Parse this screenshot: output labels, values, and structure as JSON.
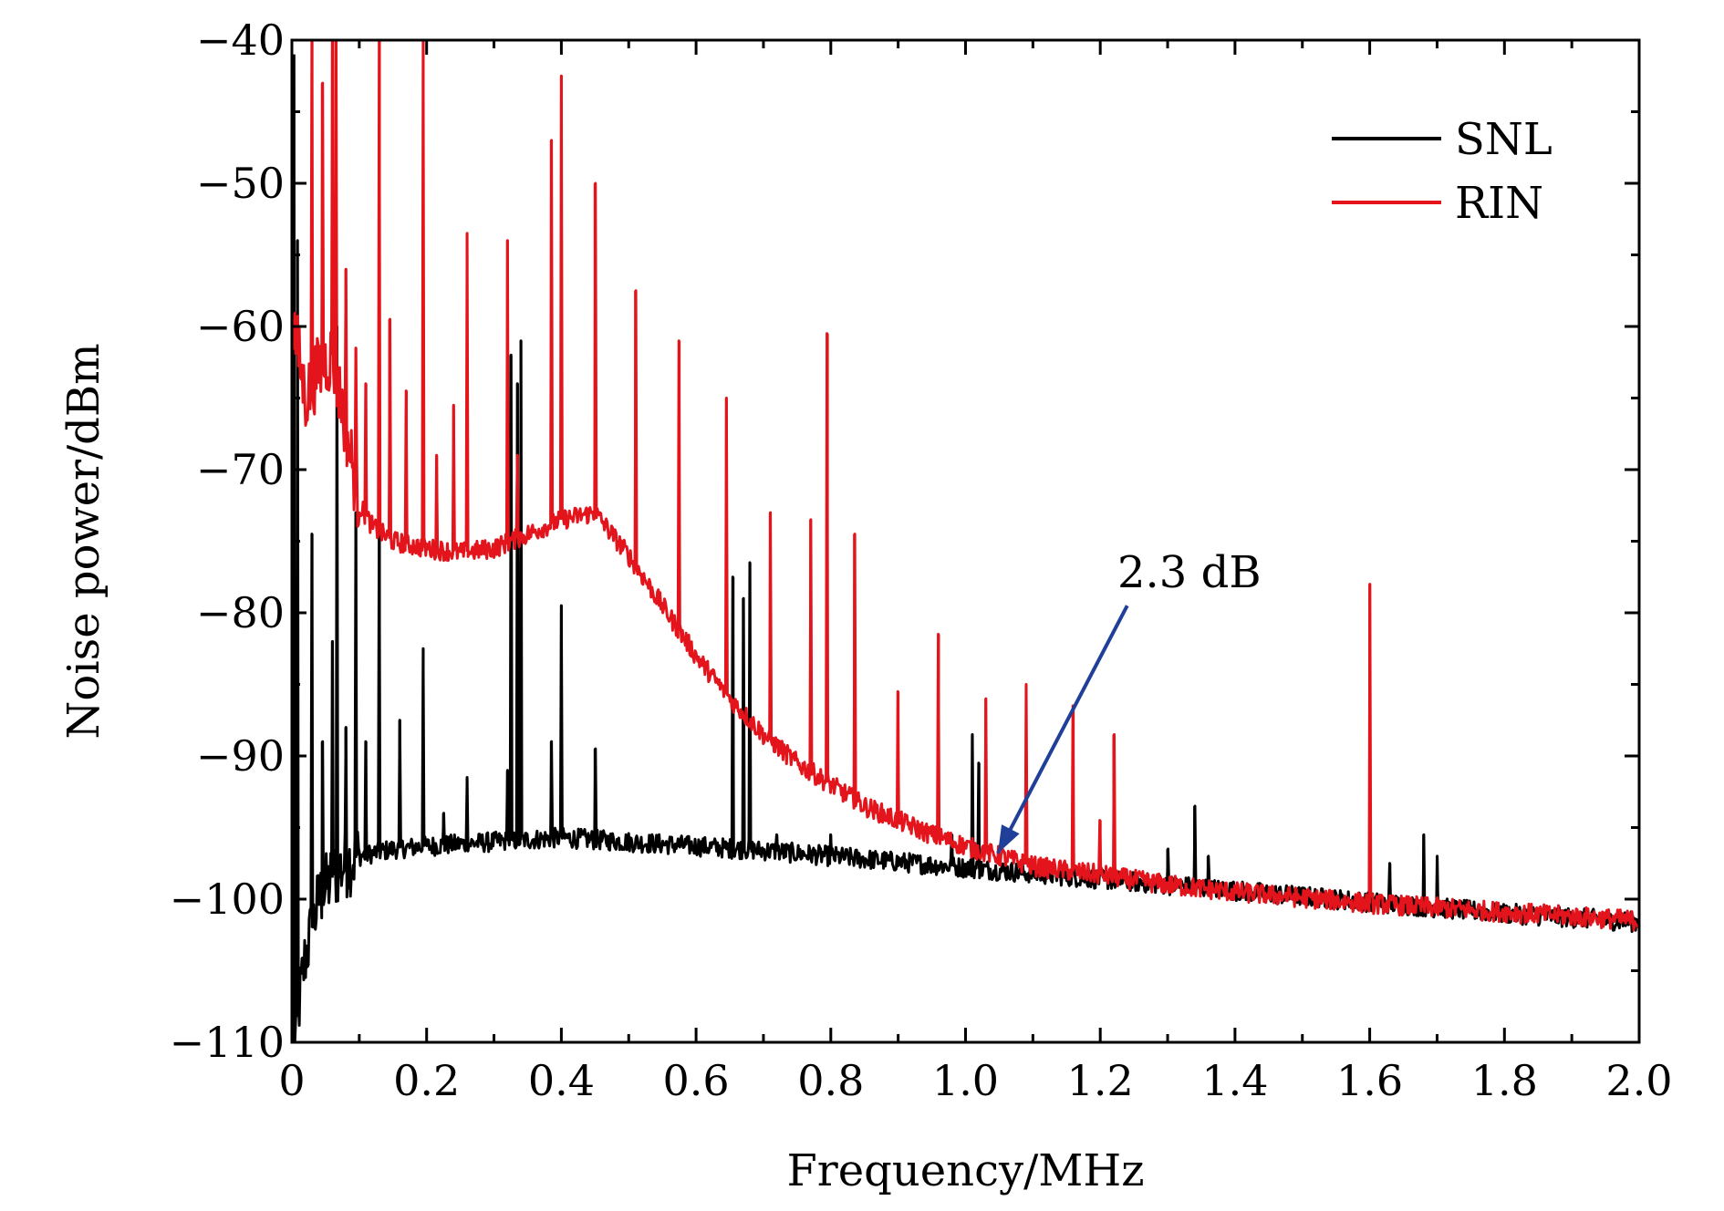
{
  "chart_data": {
    "type": "line",
    "title": "",
    "xlabel": "Frequency/MHz",
    "ylabel": "Noise power/dBm",
    "xlim": [
      0,
      2.0
    ],
    "ylim": [
      -110,
      -40
    ],
    "x_ticks": [
      0,
      0.2,
      0.4,
      0.6,
      0.8,
      1.0,
      1.2,
      1.4,
      1.6,
      1.8,
      2.0
    ],
    "x_tick_labels": [
      "0",
      "0.2",
      "0.4",
      "0.6",
      "0.8",
      "1.0",
      "1.2",
      "1.4",
      "1.6",
      "1.8",
      "2.0"
    ],
    "y_ticks": [
      -110,
      -100,
      -90,
      -80,
      -70,
      -60,
      -50,
      -40
    ],
    "y_tick_labels": [
      "−110",
      "−100",
      "−90",
      "−80",
      "−70",
      "−60",
      "−50",
      "−40"
    ],
    "grid": false,
    "legend_position": "top-right",
    "series": [
      {
        "name": "SNL",
        "color": "#000000",
        "baseline": [
          [
            0.003,
            -110
          ],
          [
            0.02,
            -104
          ],
          [
            0.04,
            -100
          ],
          [
            0.06,
            -98.5
          ],
          [
            0.08,
            -97.5
          ],
          [
            0.1,
            -97
          ],
          [
            0.15,
            -96.5
          ],
          [
            0.2,
            -96.3
          ],
          [
            0.3,
            -96
          ],
          [
            0.4,
            -95.7
          ],
          [
            0.5,
            -96
          ],
          [
            0.6,
            -96.3
          ],
          [
            0.7,
            -96.6
          ],
          [
            0.8,
            -97
          ],
          [
            0.9,
            -97.4
          ],
          [
            1.0,
            -97.8
          ],
          [
            1.1,
            -98.2
          ],
          [
            1.2,
            -98.6
          ],
          [
            1.3,
            -99
          ],
          [
            1.4,
            -99.4
          ],
          [
            1.5,
            -99.8
          ],
          [
            1.6,
            -100.2
          ],
          [
            1.7,
            -100.6
          ],
          [
            1.8,
            -101
          ],
          [
            1.9,
            -101.3
          ],
          [
            2.0,
            -101.6
          ]
        ],
        "spikes": [
          [
            0.003,
            -41
          ],
          [
            0.008,
            -54
          ],
          [
            0.03,
            -74.5
          ],
          [
            0.045,
            -89
          ],
          [
            0.06,
            -82
          ],
          [
            0.067,
            -60
          ],
          [
            0.08,
            -88
          ],
          [
            0.095,
            -73
          ],
          [
            0.11,
            -89
          ],
          [
            0.13,
            -73.5
          ],
          [
            0.16,
            -87.5
          ],
          [
            0.195,
            -82.5
          ],
          [
            0.225,
            -94
          ],
          [
            0.26,
            -91.5
          ],
          [
            0.32,
            -91
          ],
          [
            0.325,
            -62
          ],
          [
            0.335,
            -64
          ],
          [
            0.34,
            -61
          ],
          [
            0.385,
            -89
          ],
          [
            0.4,
            -79.5
          ],
          [
            0.45,
            -89.5
          ],
          [
            0.655,
            -77.5
          ],
          [
            0.67,
            -79
          ],
          [
            0.68,
            -76.5
          ],
          [
            0.72,
            -95.5
          ],
          [
            0.8,
            -95.5
          ],
          [
            0.98,
            -95.5
          ],
          [
            1.01,
            -88.5
          ],
          [
            1.02,
            -90.5
          ],
          [
            1.3,
            -96.5
          ],
          [
            1.34,
            -93.5
          ],
          [
            1.36,
            -97
          ],
          [
            1.63,
            -97.5
          ],
          [
            1.68,
            -95.5
          ],
          [
            1.7,
            -97
          ]
        ]
      },
      {
        "name": "RIN",
        "color": "#e3141b",
        "baseline": [
          [
            0.003,
            -60
          ],
          [
            0.02,
            -65
          ],
          [
            0.04,
            -63
          ],
          [
            0.06,
            -62
          ],
          [
            0.08,
            -67
          ],
          [
            0.1,
            -72.5
          ],
          [
            0.12,
            -74
          ],
          [
            0.15,
            -75
          ],
          [
            0.2,
            -75.5
          ],
          [
            0.25,
            -75.8
          ],
          [
            0.3,
            -75.5
          ],
          [
            0.35,
            -74.5
          ],
          [
            0.4,
            -73.5
          ],
          [
            0.45,
            -73
          ],
          [
            0.5,
            -76
          ],
          [
            0.55,
            -79.5
          ],
          [
            0.6,
            -83
          ],
          [
            0.65,
            -86
          ],
          [
            0.7,
            -88.5
          ],
          [
            0.75,
            -90.5
          ],
          [
            0.8,
            -92
          ],
          [
            0.85,
            -93.5
          ],
          [
            0.9,
            -94.5
          ],
          [
            0.95,
            -95.5
          ],
          [
            1.0,
            -96.3
          ],
          [
            1.05,
            -97
          ],
          [
            1.1,
            -97.7
          ],
          [
            1.2,
            -98.3
          ],
          [
            1.3,
            -99
          ],
          [
            1.4,
            -99.5
          ],
          [
            1.5,
            -99.9
          ],
          [
            1.6,
            -100.3
          ],
          [
            1.7,
            -100.6
          ],
          [
            1.8,
            -100.9
          ],
          [
            1.9,
            -101.2
          ],
          [
            2.0,
            -101.5
          ]
        ],
        "spikes": [
          [
            0.03,
            -40
          ],
          [
            0.045,
            -43
          ],
          [
            0.06,
            -40
          ],
          [
            0.065,
            -40
          ],
          [
            0.08,
            -56
          ],
          [
            0.095,
            -61.5
          ],
          [
            0.11,
            -64
          ],
          [
            0.13,
            -40
          ],
          [
            0.145,
            -59.5
          ],
          [
            0.17,
            -64.5
          ],
          [
            0.195,
            -40
          ],
          [
            0.215,
            -69
          ],
          [
            0.24,
            -65.5
          ],
          [
            0.26,
            -53.5
          ],
          [
            0.32,
            -54
          ],
          [
            0.335,
            -69
          ],
          [
            0.385,
            -47
          ],
          [
            0.4,
            -42.5
          ],
          [
            0.45,
            -50
          ],
          [
            0.51,
            -57.5
          ],
          [
            0.575,
            -61
          ],
          [
            0.645,
            -65
          ],
          [
            0.71,
            -73
          ],
          [
            0.77,
            -73.5
          ],
          [
            0.795,
            -60.5
          ],
          [
            0.835,
            -74.5
          ],
          [
            0.9,
            -85.5
          ],
          [
            0.96,
            -81.5
          ],
          [
            1.03,
            -86
          ],
          [
            1.09,
            -85
          ],
          [
            1.16,
            -86.5
          ],
          [
            1.2,
            -94.5
          ],
          [
            1.22,
            -88.5
          ],
          [
            1.6,
            -78
          ]
        ]
      }
    ],
    "annotations": [
      {
        "text": "2.3 dB",
        "arrow_from": [
          1.24,
          -79.5
        ],
        "arrow_to": [
          1.048,
          -96.8
        ],
        "color": "#1f3f99"
      }
    ]
  }
}
